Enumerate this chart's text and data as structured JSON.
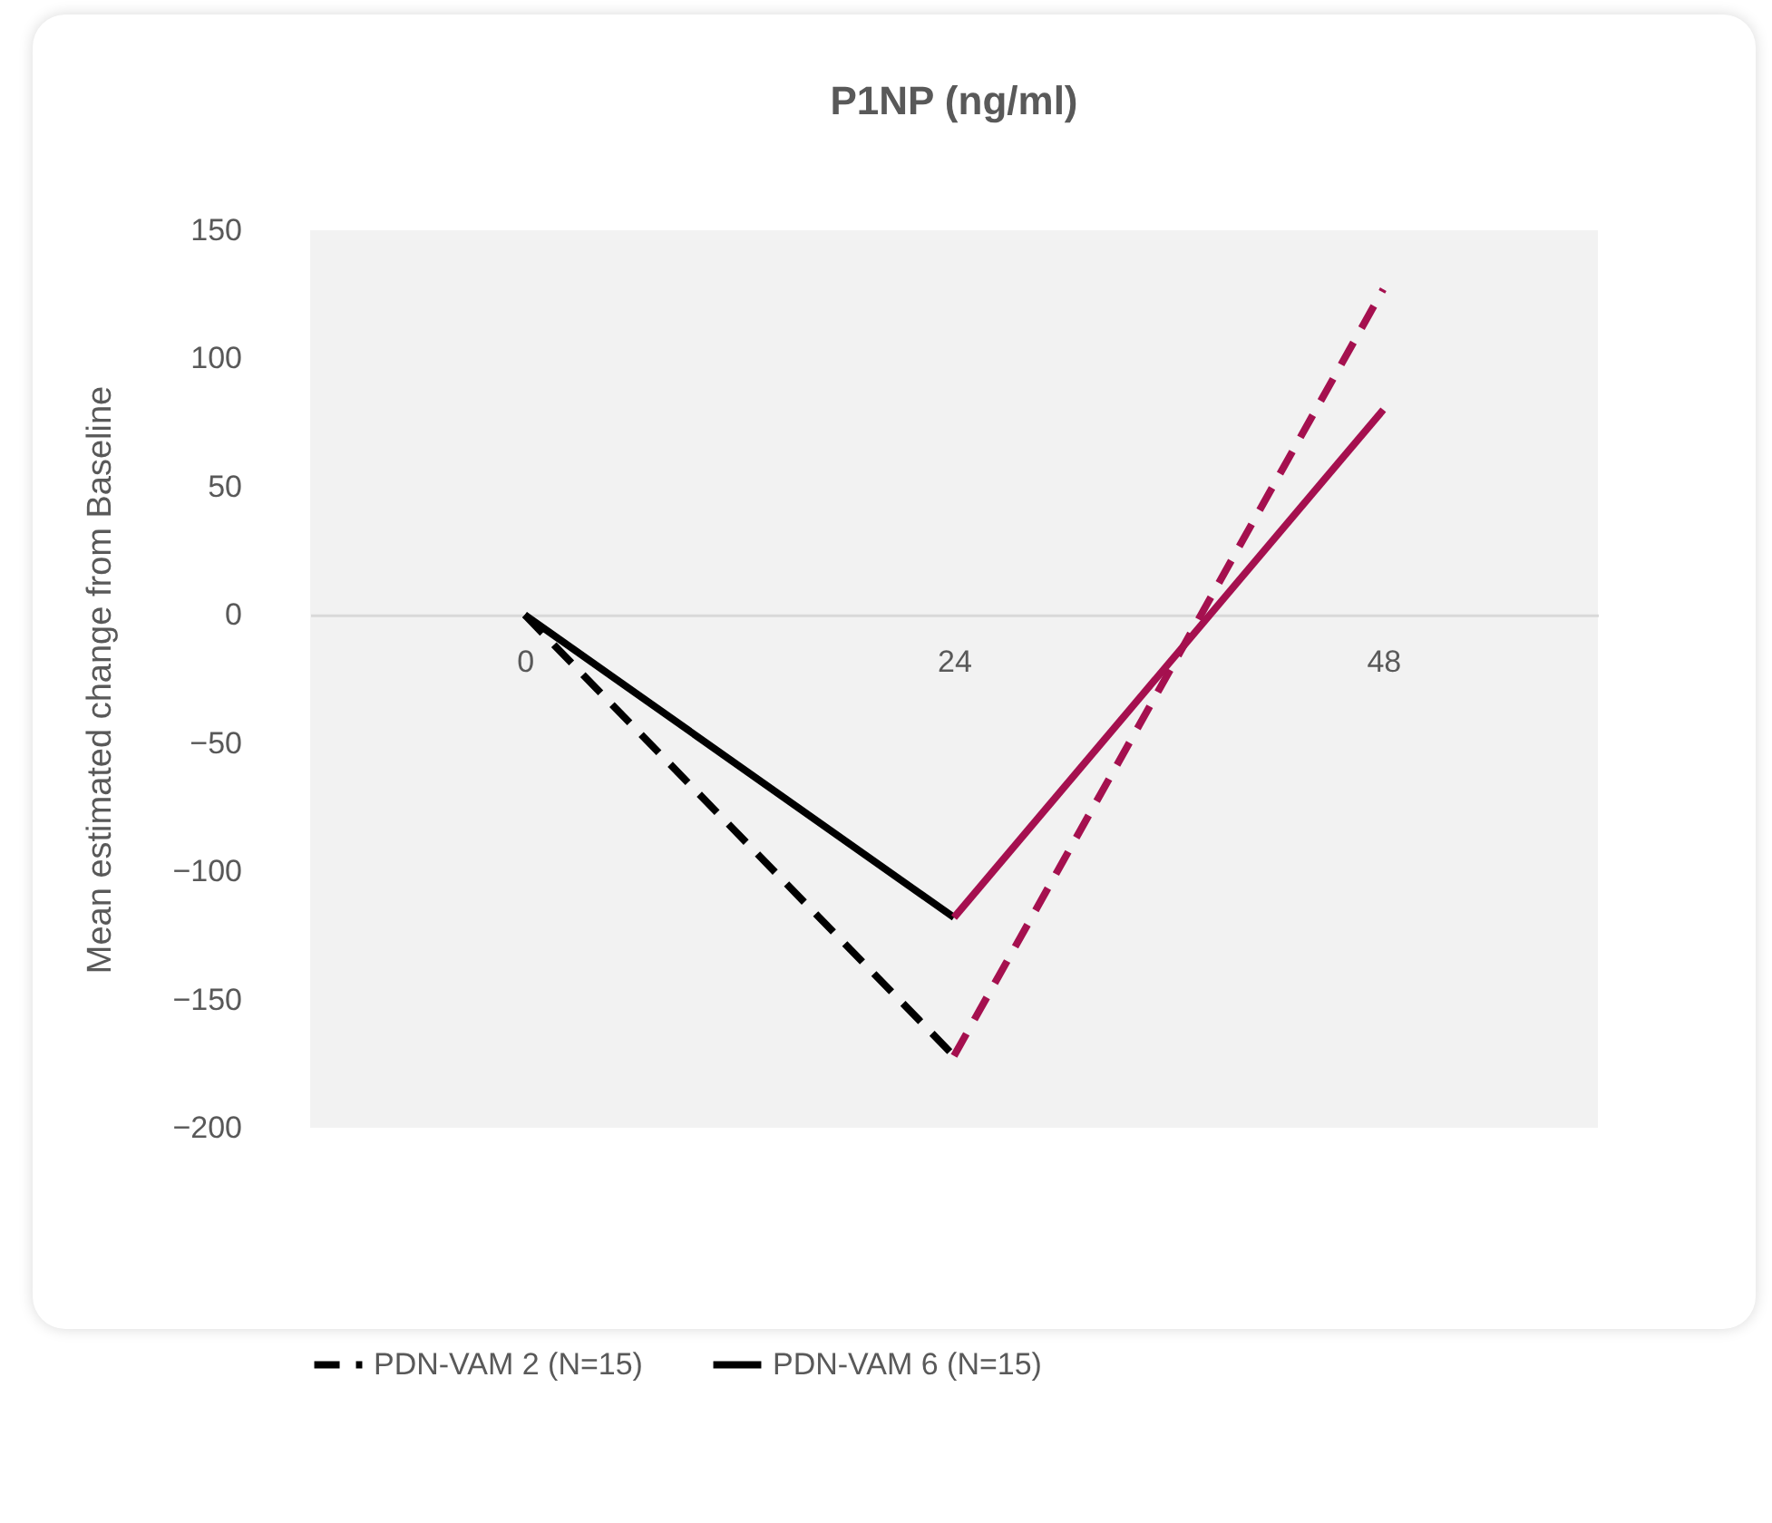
{
  "chart_data": {
    "type": "line",
    "title": "P1NP (ng/ml)",
    "ylabel": "Mean estimated change from Baseline",
    "categories": [
      "0",
      "24",
      "48"
    ],
    "series": [
      {
        "name": "PDN-VAM 2 (N=15)",
        "color": "#000000",
        "line_style": "dashed",
        "values": [
          0,
          -172,
          null
        ]
      },
      {
        "color": "#a5104f",
        "line_style": "dashed",
        "values": [
          null,
          -172,
          127
        ]
      },
      {
        "name": "PDN-VAM 6 (N=15)",
        "color": "#000000",
        "line_style": "solid",
        "values": [
          0,
          -118,
          null
        ]
      },
      {
        "color": "#a5104f",
        "line_style": "solid",
        "values": [
          null,
          -118,
          80
        ]
      }
    ],
    "ylim": [
      -200,
      150
    ],
    "yticks": [
      -200,
      -150,
      -100,
      -50,
      0,
      50,
      100,
      150
    ],
    "grid": false,
    "legend": "bottom",
    "marker": "none"
  }
}
